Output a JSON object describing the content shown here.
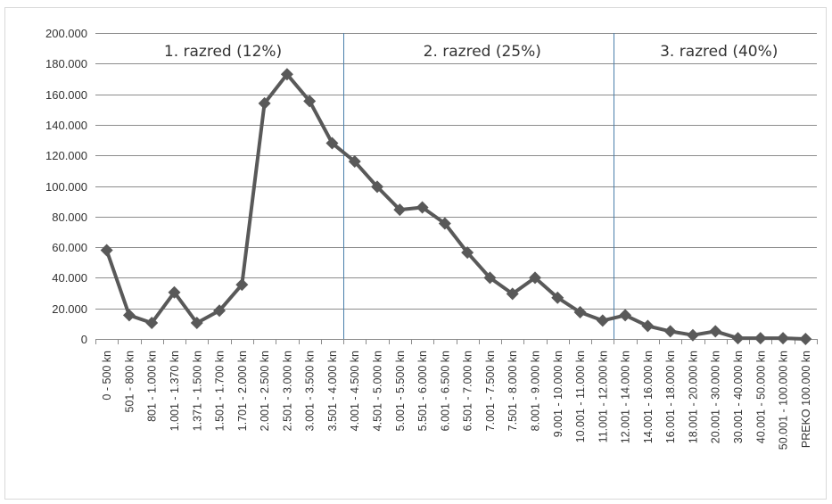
{
  "chart_data": {
    "type": "line",
    "title": "",
    "xlabel": "",
    "ylabel": "",
    "ylim": [
      0,
      200000
    ],
    "y_ticks": [
      0,
      20000,
      40000,
      60000,
      80000,
      100000,
      120000,
      140000,
      160000,
      180000,
      200000
    ],
    "y_tick_labels": [
      "0",
      "20.000",
      "40.000",
      "60.000",
      "80.000",
      "100.000",
      "120.000",
      "140.000",
      "160.000",
      "180.000",
      "200.000"
    ],
    "grid": true,
    "legend": "none",
    "categories": [
      "0 -   500 kn",
      "501 -   800 kn",
      "801 -  1.000 kn",
      "1.001 -  1.370 kn",
      "1.371 -  1.500 kn",
      "1.501 -  1.700 kn",
      "1.701 -  2.000 kn",
      "2.001 -  2.500 kn",
      "2.501 -  3.000 kn",
      "3.001 -  3.500 kn",
      "3.501 -  4.000 kn",
      "4.001 -  4.500 kn",
      "4.501 -  5.000 kn",
      "5.001 -  5.500 kn",
      "5.501 -  6.000 kn",
      "6.001 -  6.500 kn",
      "6.501 -  7.000 kn",
      "7.001 -  7.500 kn",
      "7.501 -  8.000 kn",
      "8.001 -  9.000 kn",
      "9.001 -  10.000 kn",
      "10.001 -  11.000 kn",
      "11.001 -  12.000 kn",
      "12.001 -  14.000 kn",
      "14.001 -  16.000 kn",
      "16.001 -  18.000 kn",
      "18.001 -  20.000 kn",
      "20.001 -  30.000 kn",
      "30.001 -  40.000 kn",
      "40.001 -  50.000 kn",
      "50.001 - 100.000 kn",
      "PREKO 100.000 kn"
    ],
    "series": [
      {
        "color": "#595959",
        "marker": "diamond",
        "values": [
          58000,
          15500,
          10500,
          30500,
          10500,
          18500,
          35500,
          154000,
          173000,
          155500,
          128000,
          116000,
          99500,
          84500,
          86000,
          75500,
          56500,
          40000,
          29500,
          40000,
          27000,
          17500,
          12000,
          15500,
          8500,
          5000,
          2500,
          5000,
          500,
          500,
          500,
          0
        ]
      }
    ],
    "bands": [
      {
        "label": "1. razred (12%)",
        "from_index": 0,
        "to_index": 10.5
      },
      {
        "label": "2. razred (25%)",
        "from_index": 10.5,
        "to_index": 22.5
      },
      {
        "label": "3. razred (40%)",
        "from_index": 22.5,
        "to_index": 31
      }
    ],
    "band_divider_color": "#4a7eab",
    "grid_color": "#8c8c8c",
    "axis_color": "#8c8c8c"
  }
}
